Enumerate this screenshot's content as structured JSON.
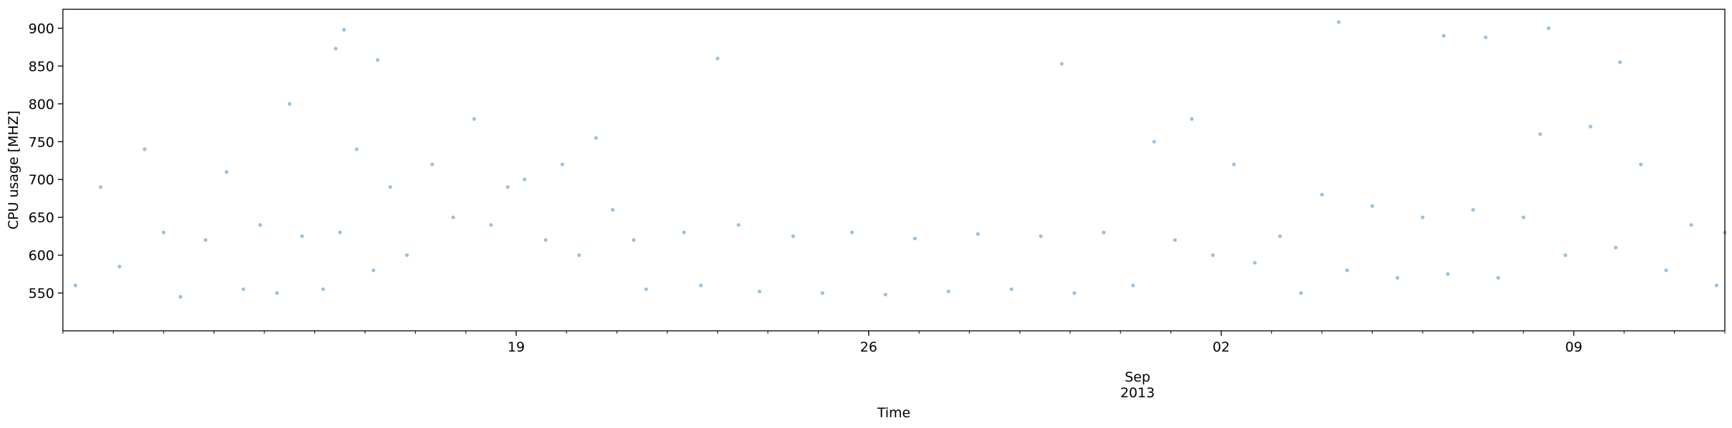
{
  "chart_data": {
    "type": "scatter",
    "title": "",
    "xlabel": "Time",
    "ylabel": "CPU usage [MHZ]",
    "x_range": [
      "2013-08-10",
      "2013-09-12"
    ],
    "ylim": [
      500,
      925
    ],
    "x_ticks": [
      {
        "date": "2013-08-19",
        "label": "19"
      },
      {
        "date": "2013-08-26",
        "label": "26"
      },
      {
        "date": "2013-09-02",
        "label": "02"
      },
      {
        "date": "2013-09-09",
        "label": "09"
      }
    ],
    "x_secondary_label": [
      "Sep",
      "2013"
    ],
    "y_ticks": [
      550,
      600,
      650,
      700,
      750,
      800,
      850,
      900
    ],
    "marker_color": "#1f77b4",
    "marker_alpha": 0.45,
    "grid": false,
    "legend": "none",
    "series": [
      {
        "points": [
          [
            "2013-08-10 06:00",
            560
          ],
          [
            "2013-08-10 18:00",
            690
          ],
          [
            "2013-08-11 03:00",
            585
          ],
          [
            "2013-08-11 15:00",
            740
          ],
          [
            "2013-08-12 00:00",
            630
          ],
          [
            "2013-08-12 08:00",
            545
          ],
          [
            "2013-08-12 20:00",
            620
          ],
          [
            "2013-08-13 06:00",
            710
          ],
          [
            "2013-08-13 14:00",
            555
          ],
          [
            "2013-08-13 22:00",
            640
          ],
          [
            "2013-08-14 06:00",
            550
          ],
          [
            "2013-08-14 18:00",
            625
          ],
          [
            "2013-08-15 04:00",
            555
          ],
          [
            "2013-08-15 12:00",
            630
          ],
          [
            "2013-08-15 20:00",
            740
          ],
          [
            "2013-08-16 04:00",
            580
          ],
          [
            "2013-08-16 12:00",
            690
          ],
          [
            "2013-08-16 20:00",
            600
          ],
          [
            "2013-08-17 08:00",
            720
          ],
          [
            "2013-08-17 18:00",
            650
          ],
          [
            "2013-08-18 04:00",
            780
          ],
          [
            "2013-08-18 12:00",
            640
          ],
          [
            "2013-08-18 20:00",
            690
          ],
          [
            "2013-08-19 04:00",
            700
          ],
          [
            "2013-08-19 14:00",
            620
          ],
          [
            "2013-08-19 22:00",
            720
          ],
          [
            "2013-08-20 06:00",
            600
          ],
          [
            "2013-08-20 14:00",
            755
          ],
          [
            "2013-08-20 22:00",
            660
          ],
          [
            "2013-08-21 08:00",
            620
          ],
          [
            "2013-08-21 14:00",
            555
          ],
          [
            "2013-08-22 08:00",
            630
          ],
          [
            "2013-08-22 16:00",
            560
          ],
          [
            "2013-08-23 10:00",
            640
          ],
          [
            "2013-08-23 20:00",
            552
          ],
          [
            "2013-08-24 12:00",
            625
          ],
          [
            "2013-08-25 02:00",
            550
          ],
          [
            "2013-08-25 16:00",
            630
          ],
          [
            "2013-08-26 08:00",
            548
          ],
          [
            "2013-08-26 22:00",
            622
          ],
          [
            "2013-08-27 14:00",
            552
          ],
          [
            "2013-08-28 04:00",
            628
          ],
          [
            "2013-08-28 20:00",
            555
          ],
          [
            "2013-08-29 10:00",
            625
          ],
          [
            "2013-08-30 02:00",
            550
          ],
          [
            "2013-08-30 16:00",
            630
          ],
          [
            "2013-08-31 06:00",
            560
          ],
          [
            "2013-08-31 16:00",
            750
          ],
          [
            "2013-09-01 02:00",
            620
          ],
          [
            "2013-09-01 10:00",
            780
          ],
          [
            "2013-09-01 20:00",
            600
          ],
          [
            "2013-09-02 06:00",
            720
          ],
          [
            "2013-09-02 16:00",
            590
          ],
          [
            "2013-09-03 04:00",
            625
          ],
          [
            "2013-09-03 14:00",
            550
          ],
          [
            "2013-09-04 00:00",
            680
          ],
          [
            "2013-09-04 12:00",
            580
          ],
          [
            "2013-09-05 00:00",
            665
          ],
          [
            "2013-09-05 12:00",
            570
          ],
          [
            "2013-09-06 00:00",
            650
          ],
          [
            "2013-09-06 12:00",
            575
          ],
          [
            "2013-09-07 00:00",
            660
          ],
          [
            "2013-09-07 12:00",
            570
          ],
          [
            "2013-09-08 00:00",
            650
          ],
          [
            "2013-09-08 08:00",
            760
          ],
          [
            "2013-09-08 20:00",
            600
          ],
          [
            "2013-09-09 08:00",
            770
          ],
          [
            "2013-09-09 20:00",
            610
          ],
          [
            "2013-09-10 08:00",
            720
          ],
          [
            "2013-09-10 20:00",
            580
          ],
          [
            "2013-09-11 08:00",
            640
          ],
          [
            "2013-09-11 20:00",
            560
          ],
          [
            "2013-09-12 00:00",
            630
          ],
          [
            "2013-08-14 12:00",
            800
          ],
          [
            "2013-08-15 10:00",
            873
          ],
          [
            "2013-08-15 14:00",
            898
          ],
          [
            "2013-08-16 06:00",
            858
          ],
          [
            "2013-08-23 00:00",
            860
          ],
          [
            "2013-08-29 20:00",
            853
          ],
          [
            "2013-09-04 08:00",
            908
          ],
          [
            "2013-09-06 10:00",
            890
          ],
          [
            "2013-09-07 06:00",
            888
          ],
          [
            "2013-09-08 12:00",
            900
          ],
          [
            "2013-09-09 22:00",
            855
          ]
        ]
      }
    ]
  }
}
